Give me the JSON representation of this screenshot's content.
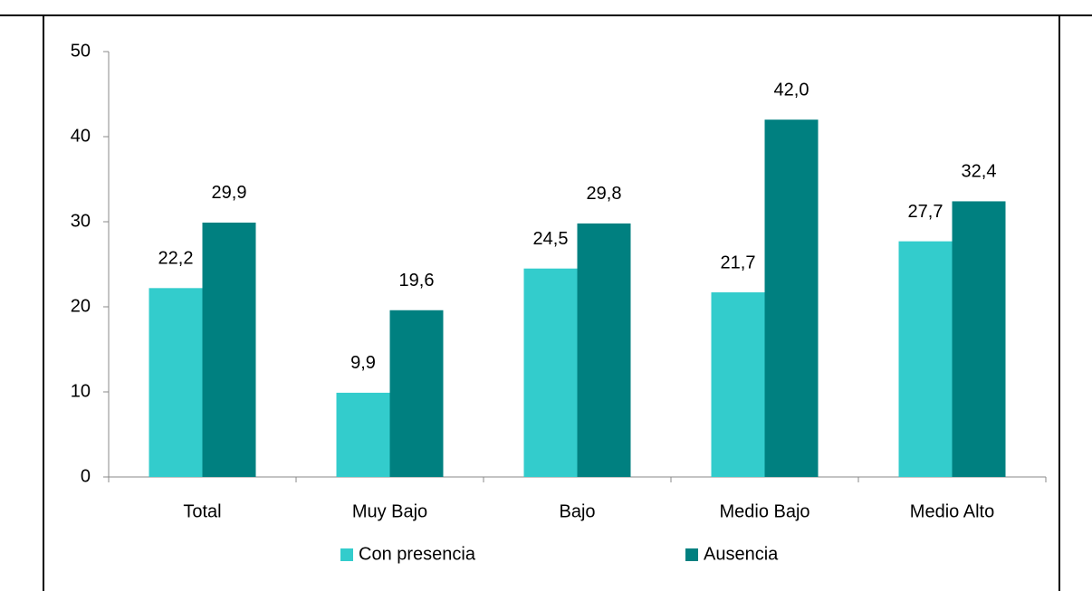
{
  "chart_data": {
    "type": "bar",
    "categories": [
      "Total",
      "Muy Bajo",
      "Bajo",
      "Medio Bajo",
      "Medio Alto"
    ],
    "series": [
      {
        "name": "Con presencia",
        "color": "#33cccc",
        "values": [
          22.2,
          9.9,
          24.5,
          21.7,
          27.7
        ],
        "value_labels": [
          "22,2",
          "9,9",
          "24,5",
          "21,7",
          "27,7"
        ]
      },
      {
        "name": "Ausencia",
        "color": "#008080",
        "values": [
          29.9,
          19.6,
          29.8,
          42.0,
          32.4
        ],
        "value_labels": [
          "29,9",
          "19,6",
          "29,8",
          "42,0",
          "32,4"
        ]
      }
    ],
    "ylim": [
      0,
      50
    ],
    "yticks": [
      0,
      10,
      20,
      30,
      40,
      50
    ],
    "grid": false,
    "legend": "bottom"
  }
}
